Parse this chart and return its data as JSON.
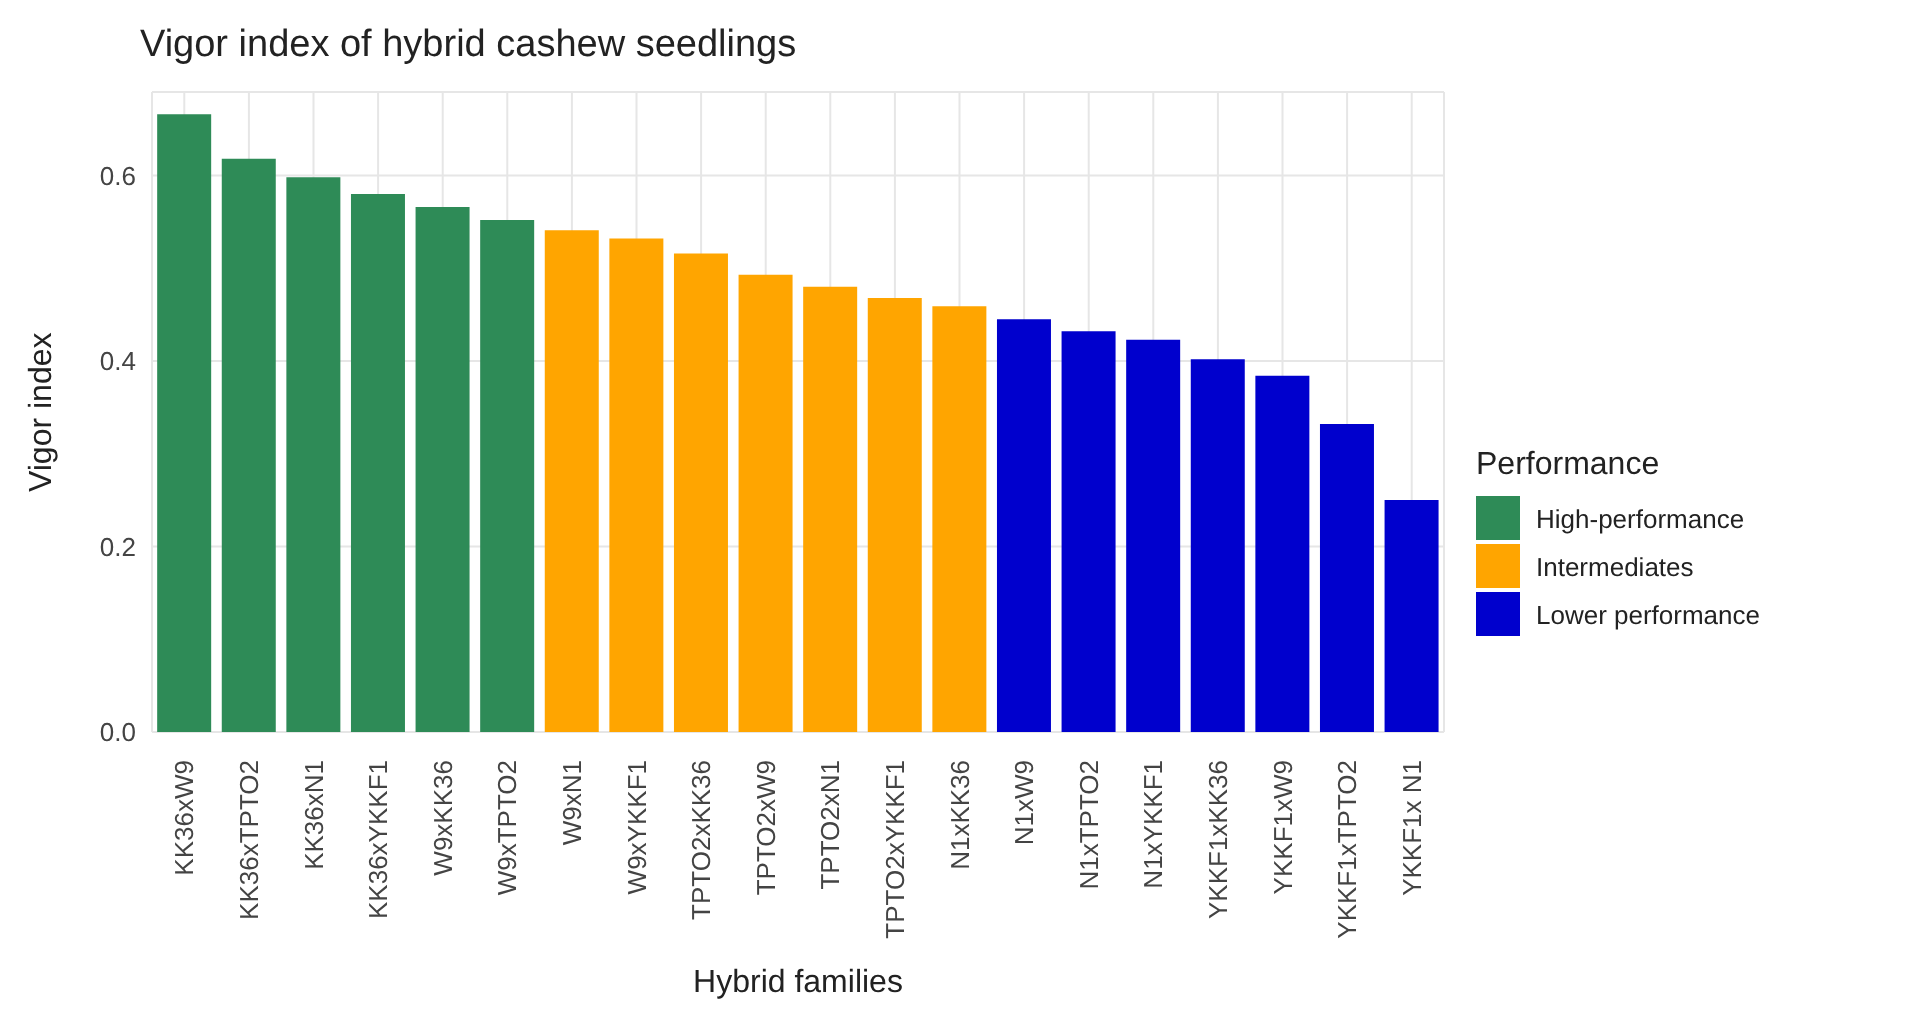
{
  "chart_data": {
    "type": "bar",
    "title": "Vigor index of hybrid cashew seedlings",
    "xlabel": "Hybrid families",
    "ylabel": "Vigor index",
    "legend_title": "Performance",
    "categories": [
      "KK36xW9",
      "KK36xTPTO2",
      "KK36xN1",
      "KK36xYKKF1",
      "W9xKK36",
      "W9xTPTO2",
      "W9xN1",
      "W9xYKKF1",
      "TPTO2xKK36",
      "TPTO2xW9",
      "TPTO2xN1",
      "TPTO2xYKKF1",
      "N1xKK36",
      "N1xW9",
      "N1xTPTO2",
      "N1xYKKF1",
      "YKKF1xKK36",
      "YKKF1xW9",
      "YKKF1xTPTO2",
      "YKKF1x N1"
    ],
    "series": [
      {
        "name": "High-performance",
        "color": "#2e8b57",
        "values": [
          0.666,
          0.618,
          0.598,
          0.58,
          0.566,
          0.552,
          null,
          null,
          null,
          null,
          null,
          null,
          null,
          null,
          null,
          null,
          null,
          null,
          null,
          null
        ]
      },
      {
        "name": "Intermediates",
        "color": "#ffa500",
        "values": [
          null,
          null,
          null,
          null,
          null,
          null,
          0.541,
          0.532,
          0.516,
          0.493,
          0.48,
          0.468,
          0.459,
          null,
          null,
          null,
          null,
          null,
          null,
          null
        ]
      },
      {
        "name": "Lower performance",
        "color": "#0000cd",
        "values": [
          null,
          null,
          null,
          null,
          null,
          null,
          null,
          null,
          null,
          null,
          null,
          null,
          null,
          0.445,
          0.432,
          0.423,
          0.402,
          0.384,
          0.332,
          0.25
        ]
      }
    ],
    "stacked": true,
    "ylim": [
      0,
      0.69
    ],
    "yticks": [
      {
        "value": 0,
        "label": "0.0"
      },
      {
        "value": 0.2,
        "label": "0.2"
      },
      {
        "value": 0.4,
        "label": "0.4"
      },
      {
        "value": 0.6,
        "label": "0.6"
      }
    ],
    "grid": true,
    "legend": "right"
  }
}
